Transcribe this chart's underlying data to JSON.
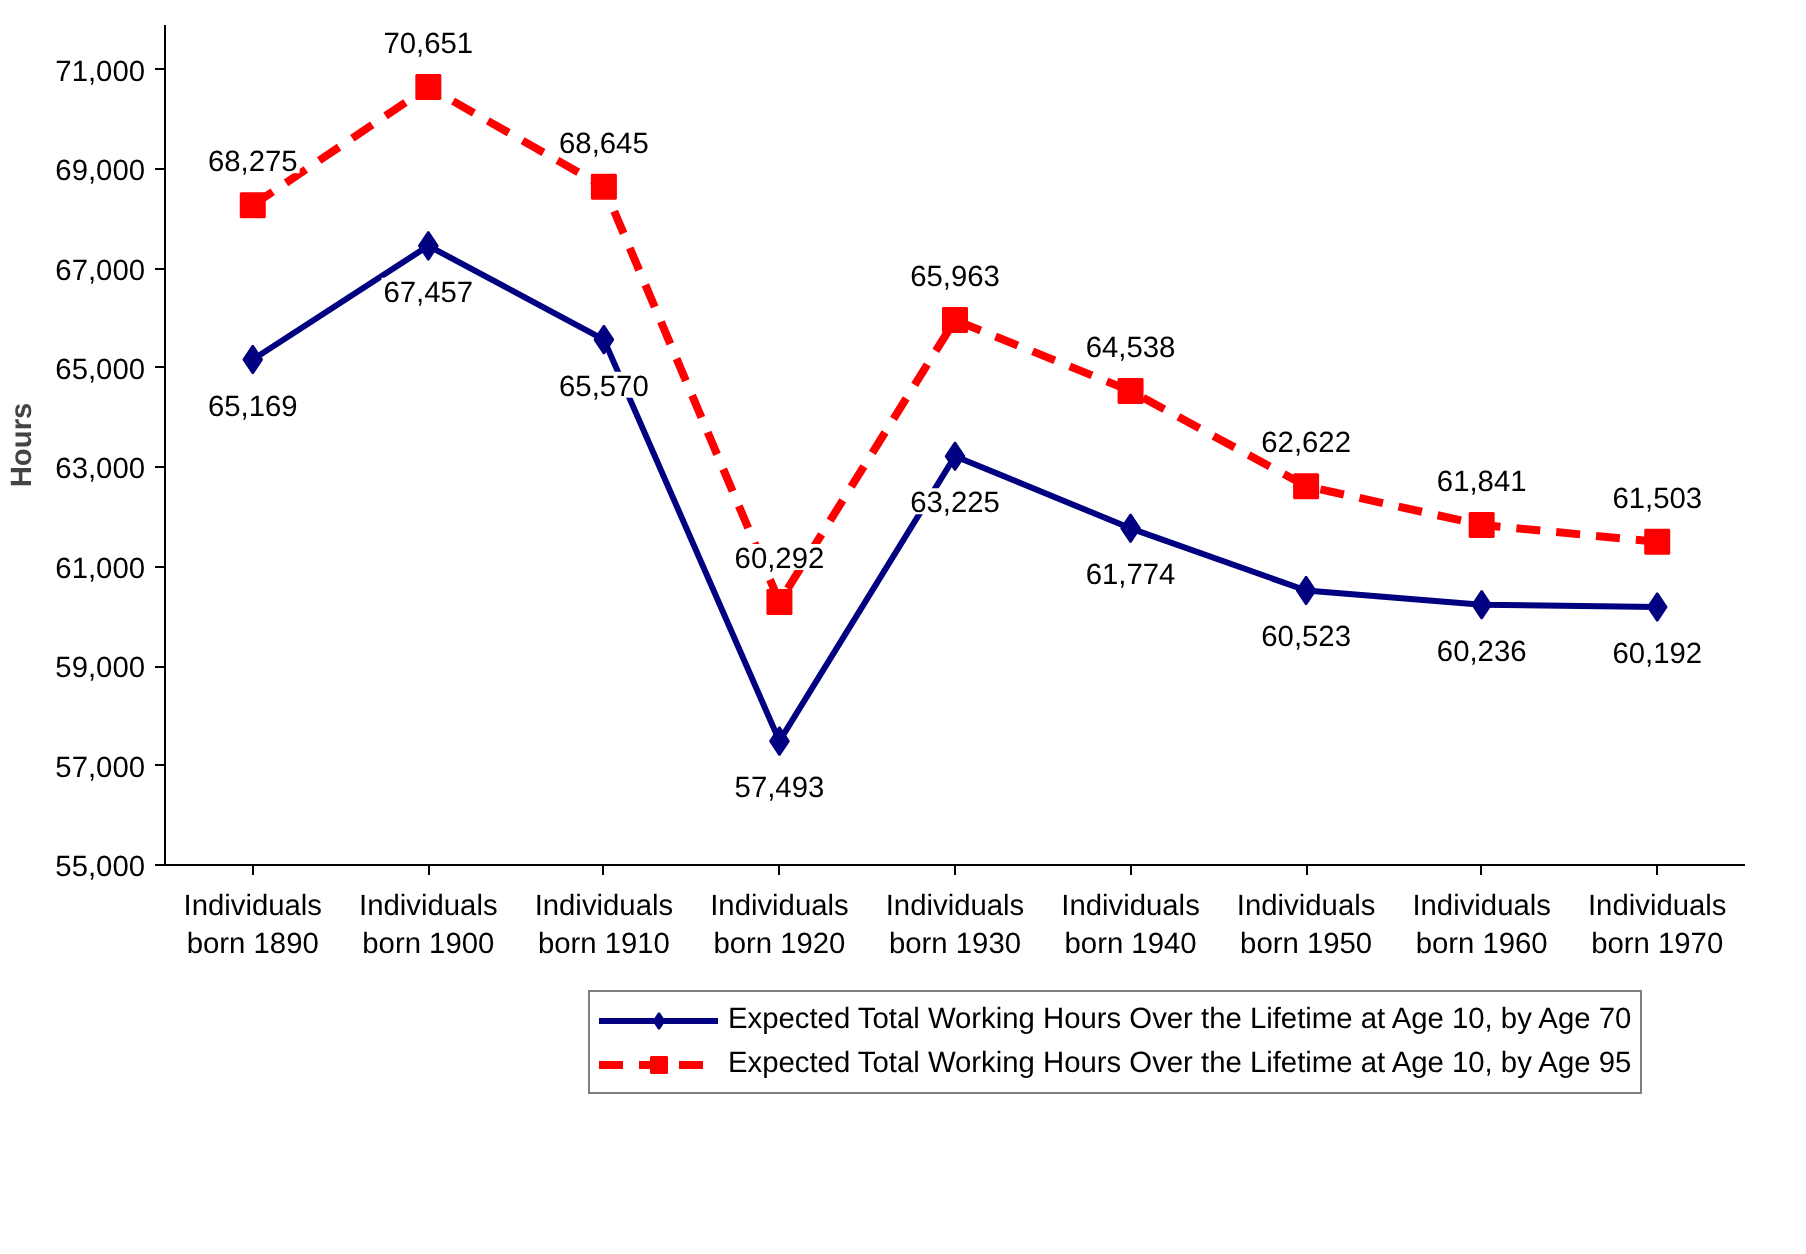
{
  "chart_data": {
    "type": "line",
    "ylabel": "Hours",
    "categories": [
      "Individuals\nborn 1890",
      "Individuals\nborn 1900",
      "Individuals\nborn 1910",
      "Individuals\nborn 1920",
      "Individuals\nborn 1930",
      "Individuals\nborn 1940",
      "Individuals\nborn 1950",
      "Individuals\nborn 1960",
      "Individuals\nborn 1970"
    ],
    "series": [
      {
        "name": "Expected Total Working Hours Over the Lifetime at Age 10, by Age 70",
        "color": "#000080",
        "marker": "diamond",
        "line_style": "solid",
        "values": [
          65169,
          67457,
          65570,
          57493,
          63225,
          61774,
          60523,
          60236,
          60192
        ],
        "value_labels": [
          "65,169",
          "67,457",
          "65,570",
          "57,493",
          "63,225",
          "61,774",
          "60,523",
          "60,236",
          "60,192"
        ]
      },
      {
        "name": "Expected Total Working Hours Over the Lifetime at Age 10, by Age 95",
        "color": "#ff0000",
        "marker": "square",
        "line_style": "dashed",
        "values": [
          68275,
          70651,
          68645,
          60292,
          65963,
          64538,
          62622,
          61841,
          61503
        ],
        "value_labels": [
          "68,275",
          "70,651",
          "68,645",
          "60,292",
          "65,963",
          "64,538",
          "62,622",
          "61,841",
          "61,503"
        ]
      }
    ],
    "ylim": [
      55000,
      71900
    ],
    "yticks": [
      {
        "value": 55000,
        "label": "55,000"
      },
      {
        "value": 57000,
        "label": "57,000"
      },
      {
        "value": 59000,
        "label": "59,000"
      },
      {
        "value": 61000,
        "label": "61,000"
      },
      {
        "value": 63000,
        "label": "63,000"
      },
      {
        "value": 65000,
        "label": "65,000"
      },
      {
        "value": 67000,
        "label": "67,000"
      },
      {
        "value": 69000,
        "label": "69,000"
      },
      {
        "value": 71000,
        "label": "71,000"
      }
    ],
    "grid": false,
    "legend": "bottom"
  }
}
